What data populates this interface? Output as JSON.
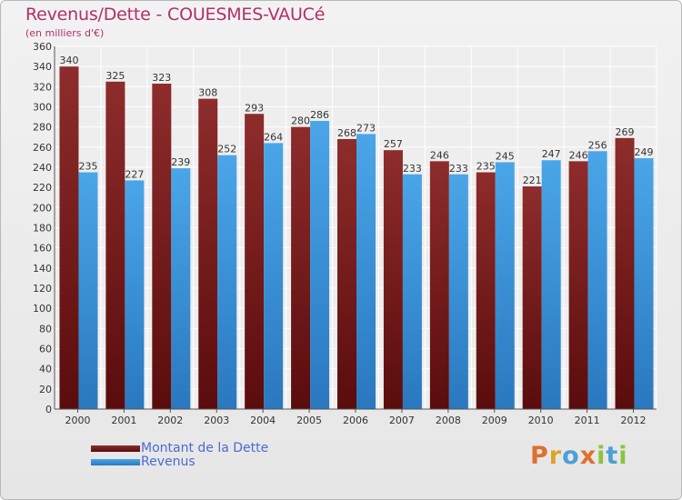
{
  "title": "Revenus/Dette - COUESMES-VAUCé",
  "subtitle": "(en milliers d'€)",
  "colors": {
    "dette": "#7a2222",
    "revenus": "#3f98dc",
    "title": "#b0306a",
    "legend_text": "#4b6ad3"
  },
  "legend": {
    "dette_label": "Montant de la Dette",
    "revenus_label": "Revenus"
  },
  "logo": {
    "letters": [
      "P",
      "r",
      "o",
      "x",
      "i",
      "t",
      "i"
    ],
    "colors": [
      "#e0702a",
      "#e0a12a",
      "#4aa0d8",
      "#e0702a",
      "#8bc43f",
      "#4aa0d8",
      "#8bc43f"
    ]
  },
  "chart_data": {
    "type": "bar",
    "categories": [
      "2000",
      "2001",
      "2002",
      "2003",
      "2004",
      "2005",
      "2006",
      "2007",
      "2008",
      "2009",
      "2010",
      "2011",
      "2012"
    ],
    "series": [
      {
        "name": "Montant de la Dette",
        "values": [
          340,
          325,
          323,
          308,
          293,
          280,
          268,
          257,
          246,
          235,
          221,
          246,
          269
        ]
      },
      {
        "name": "Revenus",
        "values": [
          235,
          227,
          239,
          252,
          264,
          286,
          273,
          233,
          233,
          245,
          247,
          256,
          249
        ]
      }
    ],
    "ylim": [
      0,
      360
    ],
    "yticks": [
      0,
      20,
      40,
      60,
      80,
      100,
      120,
      140,
      160,
      180,
      200,
      220,
      240,
      260,
      280,
      300,
      320,
      340,
      360
    ],
    "grid": true,
    "legend_position": "bottom-left"
  }
}
